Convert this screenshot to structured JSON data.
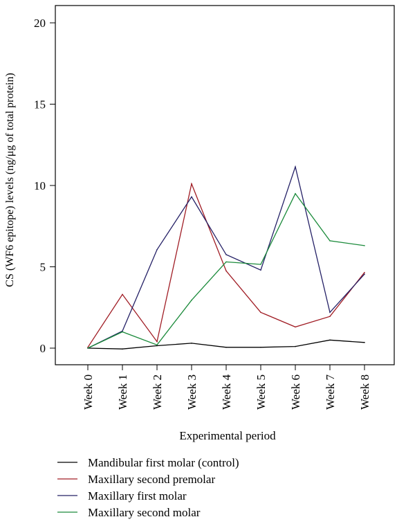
{
  "chart_data": {
    "type": "line",
    "xlabel": "Experimental period",
    "ylabel": "CS (WF6 epitope) levels (ng/μg of total protein)",
    "categories": [
      "Week 0",
      "Week 1",
      "Week 2",
      "Week 3",
      "Week 4",
      "Week 5",
      "Week 6",
      "Week 7",
      "Week 8"
    ],
    "y_ticks": [
      "0",
      "5",
      "10",
      "15",
      "20"
    ],
    "ylim": [
      -1,
      21
    ],
    "grid": false,
    "legend_position": "bottom",
    "series": [
      {
        "name": "Mandibular first molar (control)",
        "color": "#000000",
        "values": [
          0.0,
          -0.05,
          0.15,
          0.3,
          0.05,
          0.05,
          0.1,
          0.5,
          0.35
        ]
      },
      {
        "name": "Maxillary second premolar",
        "color": "#a01c24",
        "values": [
          0.05,
          3.3,
          0.4,
          10.1,
          4.75,
          2.2,
          1.3,
          1.95,
          4.65
        ]
      },
      {
        "name": "Maxillary first molar",
        "color": "#242066",
        "values": [
          0.0,
          1.05,
          6.05,
          9.3,
          5.75,
          4.8,
          11.15,
          2.2,
          4.55
        ]
      },
      {
        "name": "Maxillary second molar",
        "color": "#1a8a3a",
        "values": [
          0.0,
          1.0,
          0.2,
          2.95,
          5.3,
          5.15,
          9.5,
          6.6,
          6.3
        ]
      }
    ]
  }
}
